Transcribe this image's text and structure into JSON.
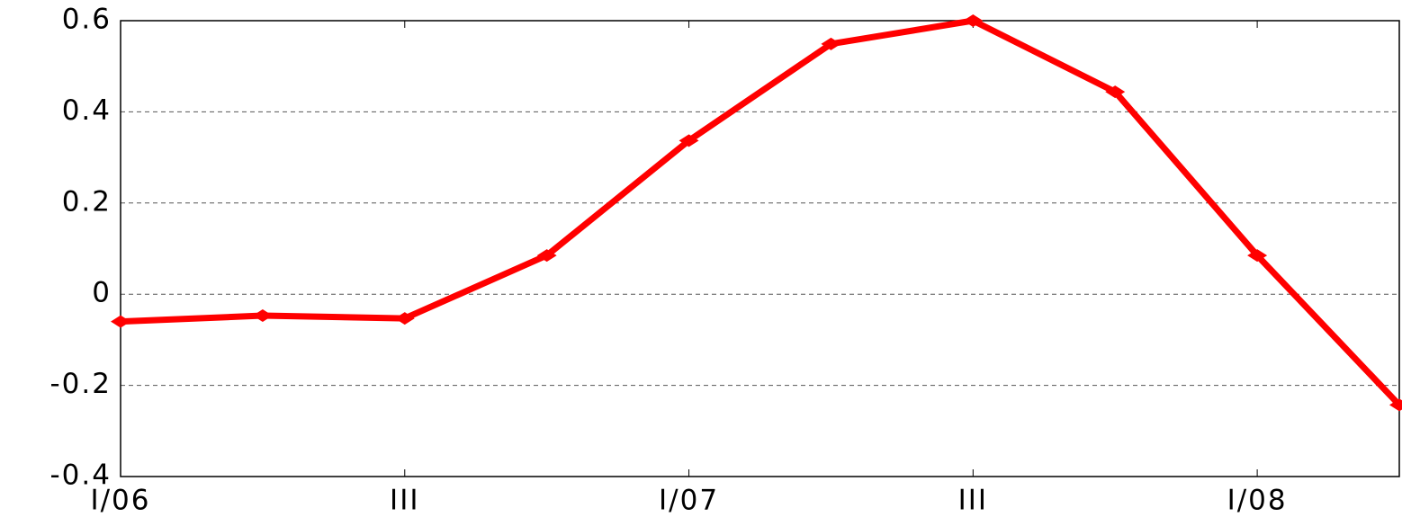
{
  "chart_data": {
    "type": "line",
    "categories": [
      "I/06",
      null,
      "III",
      null,
      "I/07",
      null,
      "III",
      null,
      "I/08",
      null
    ],
    "series": [
      {
        "name": "series",
        "color": "#ff0000",
        "values": [
          -0.06,
          -0.047,
          -0.053,
          0.085,
          0.337,
          0.549,
          0.6,
          0.444,
          0.085,
          -0.243
        ]
      }
    ],
    "ylim": [
      -0.4,
      0.6
    ],
    "yticks": [
      -0.4,
      -0.2,
      0,
      0.2,
      0.4,
      0.6
    ],
    "grid": true
  }
}
